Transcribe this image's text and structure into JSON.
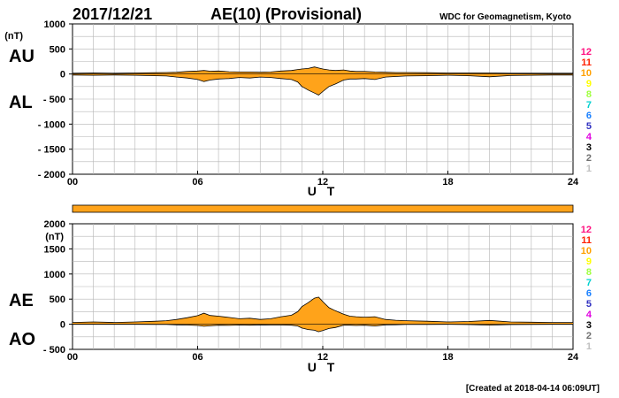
{
  "header": {
    "date": "2017/12/21",
    "title": "AE(10) (Provisional)",
    "source": "WDC for Geomagnetism, Kyoto"
  },
  "footer": {
    "created": "[Created at 2018-04-14 06:09UT]"
  },
  "colors": {
    "fill": "#ffa31a",
    "grid": "#b4b4b4",
    "stations": [
      "#c0c0c0",
      "#707070",
      "#000000",
      "#e000e0",
      "#3030c0",
      "#1a80ff",
      "#00d0d0",
      "#a0ff40",
      "#ffff00",
      "#ffa000",
      "#ff2000",
      "#ff1080"
    ]
  },
  "station_legend": [
    "12",
    "11",
    "10",
    "9",
    "8",
    "7",
    "6",
    "5",
    "4",
    "3",
    "2",
    "1"
  ],
  "chart_data": [
    {
      "type": "area",
      "id": "au-al",
      "labels_left": [
        "AU",
        "AL"
      ],
      "unit": "(nT)",
      "xlabel": "U T",
      "ylim": [
        -2000,
        1000
      ],
      "yticks": [
        {
          "value": 1000,
          "label": "1000"
        },
        {
          "value": 500,
          "label": "500"
        },
        {
          "value": 0,
          "label": "0"
        },
        {
          "value": -500,
          "label": "- 500"
        },
        {
          "value": -1000,
          "label": "- 1000"
        },
        {
          "value": -1500,
          "label": "- 1500"
        },
        {
          "value": -2000,
          "label": "- 2000"
        }
      ],
      "xlim": [
        0,
        24
      ],
      "xticks": [
        "00",
        "06",
        "12",
        "18",
        "24"
      ],
      "series": [
        {
          "name": "AU",
          "x": [
            0,
            1,
            2,
            3,
            4,
            4.5,
            5,
            5.5,
            6,
            6.3,
            6.6,
            7,
            7.5,
            8,
            8.5,
            9,
            9.5,
            10,
            10.5,
            10.8,
            11,
            11.3,
            11.6,
            11.8,
            12,
            12.3,
            12.6,
            13,
            13.3,
            13.6,
            14,
            14.5,
            15,
            15.5,
            16,
            17,
            18,
            19,
            20,
            21,
            22,
            23,
            24
          ],
          "y": [
            15,
            20,
            15,
            20,
            25,
            30,
            35,
            50,
            60,
            70,
            55,
            60,
            45,
            40,
            40,
            35,
            40,
            60,
            70,
            90,
            100,
            110,
            140,
            120,
            100,
            80,
            70,
            80,
            60,
            50,
            50,
            40,
            35,
            30,
            30,
            25,
            20,
            20,
            20,
            15,
            15,
            15,
            15
          ]
        },
        {
          "name": "AL",
          "x": [
            0,
            1,
            2,
            3,
            4,
            4.5,
            5,
            5.5,
            6,
            6.3,
            6.6,
            7,
            7.5,
            8,
            8.5,
            9,
            9.5,
            10,
            10.5,
            10.8,
            11,
            11.3,
            11.6,
            11.8,
            12,
            12.3,
            12.6,
            13,
            13.3,
            13.6,
            14,
            14.5,
            15,
            15.5,
            16,
            17,
            18,
            19,
            20,
            21,
            22,
            23,
            24
          ],
          "y": [
            -20,
            -25,
            -20,
            -25,
            -35,
            -40,
            -60,
            -80,
            -110,
            -150,
            -120,
            -100,
            -90,
            -70,
            -80,
            -60,
            -70,
            -90,
            -110,
            -160,
            -250,
            -320,
            -380,
            -420,
            -350,
            -250,
            -200,
            -120,
            -100,
            -100,
            -90,
            -110,
            -60,
            -50,
            -40,
            -35,
            -25,
            -35,
            -55,
            -30,
            -25,
            -20,
            -20
          ]
        }
      ]
    },
    {
      "type": "area",
      "id": "ae-ao",
      "labels_left": [
        "AE",
        "AO"
      ],
      "unit": "(nT)",
      "xlabel": "U T",
      "ylim": [
        -500,
        2000
      ],
      "yticks": [
        {
          "value": 2000,
          "label": "2000"
        },
        {
          "value": 1500,
          "label": "1500"
        },
        {
          "value": 1000,
          "label": "1000"
        },
        {
          "value": 500,
          "label": "500"
        },
        {
          "value": 0,
          "label": "0"
        },
        {
          "value": -500,
          "label": "- 500"
        }
      ],
      "xlim": [
        0,
        24
      ],
      "xticks": [
        "00",
        "06",
        "12",
        "18",
        "24"
      ],
      "series": [
        {
          "name": "AE",
          "x": [
            0,
            1,
            2,
            3,
            4,
            4.5,
            5,
            5.5,
            6,
            6.3,
            6.6,
            7,
            7.5,
            8,
            8.5,
            9,
            9.5,
            10,
            10.5,
            10.8,
            11,
            11.3,
            11.6,
            11.8,
            12,
            12.3,
            12.6,
            13,
            13.3,
            13.6,
            14,
            14.5,
            15,
            15.5,
            16,
            17,
            18,
            19,
            20,
            21,
            22,
            23,
            24
          ],
          "y": [
            35,
            45,
            35,
            45,
            60,
            70,
            95,
            130,
            170,
            220,
            175,
            160,
            135,
            110,
            120,
            95,
            110,
            150,
            180,
            250,
            350,
            430,
            520,
            540,
            450,
            330,
            270,
            200,
            160,
            150,
            140,
            150,
            95,
            80,
            70,
            60,
            45,
            55,
            75,
            45,
            40,
            35,
            35
          ]
        },
        {
          "name": "AO",
          "x": [
            0,
            1,
            2,
            3,
            4,
            4.5,
            5,
            5.5,
            6,
            6.3,
            6.6,
            7,
            7.5,
            8,
            8.5,
            9,
            9.5,
            10,
            10.5,
            10.8,
            11,
            11.3,
            11.6,
            11.8,
            12,
            12.3,
            12.6,
            13,
            13.3,
            13.6,
            14,
            14.5,
            15,
            15.5,
            16,
            17,
            18,
            19,
            20,
            21,
            22,
            23,
            24
          ],
          "y": [
            -2.5,
            -2.5,
            -2.5,
            -2.5,
            -5,
            -5,
            -12.5,
            -15,
            -25,
            -40,
            -32.5,
            -20,
            -22.5,
            -15,
            -20,
            -12.5,
            -15,
            -15,
            -20,
            -35,
            -75,
            -105,
            -120,
            -150,
            -125,
            -85,
            -65,
            -20,
            -20,
            -25,
            -20,
            -35,
            -12.5,
            -10,
            -5,
            -5,
            -2.5,
            -7.5,
            -17.5,
            -7.5,
            -5,
            -2.5,
            -2.5
          ]
        }
      ]
    }
  ]
}
